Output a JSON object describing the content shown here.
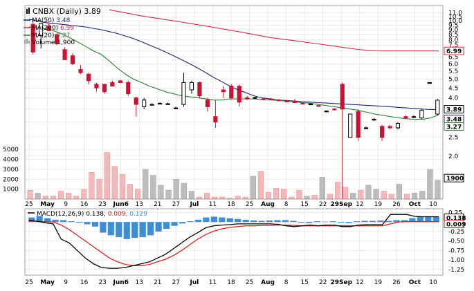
{
  "chart_data": [
    {
      "type": "candlestick",
      "title": "CNBX (Daily)",
      "last_price": "3.89",
      "colors": {
        "up": "#000000",
        "down": "#cc1133",
        "ma50": "#1a237e",
        "ma200": "#d22c4a",
        "ma20": "#2e7d32",
        "volume_up": "#bdbdbd",
        "volume_down": "#f2b8bc",
        "macd_hist": "#3d8ed9",
        "macd_line": "#000000",
        "signal_line": "#dd2222",
        "grid": "#dddddd"
      },
      "legend": [
        {
          "label": "CNBX (Daily)",
          "value": "3.89",
          "icon": "candlestick-icon"
        },
        {
          "label": "MA(50)",
          "value": "3.48",
          "color": "#1a237e"
        },
        {
          "label": "MA(200)",
          "value": "6.99",
          "color": "#d22c4a"
        },
        {
          "label": "MA(20)",
          "value": "3.27",
          "color": "#2e7d32"
        },
        {
          "label": "Volume",
          "value": "1,900",
          "icon": "volume-icon"
        }
      ],
      "price_axis": {
        "scale": "log",
        "ticks": [
          "11.0",
          "10.5",
          "10.0",
          "9.5",
          "9.0",
          "8.5",
          "8.0",
          "7.5",
          "7.0",
          "6.5",
          "6.0",
          "5.5",
          "5.0",
          "4.5",
          "4.0",
          "3.5",
          "3.0",
          "2.5",
          "2.0"
        ],
        "badges": [
          {
            "value": "6.99",
            "color": "#d22c4a"
          },
          {
            "value": "3.89",
            "color": "#000000"
          },
          {
            "value": "3.48",
            "color": "#1a237e"
          },
          {
            "value": "3.27",
            "color": "#2e7d32"
          },
          {
            "value": "1900",
            "color": "#000000"
          }
        ]
      },
      "volume_axis": {
        "ticks": [
          "5000",
          "4000",
          "3000",
          "2000",
          "1000"
        ],
        "max": 6400
      },
      "x_axis": {
        "labels": [
          "25",
          "May",
          "9",
          "16",
          "23",
          "Jun6",
          "13",
          "21",
          "27",
          "Jul",
          "11",
          "18",
          "25",
          "Aug",
          "8",
          "15",
          "22",
          "29Sep",
          "12",
          "19",
          "26",
          "Oct",
          "10"
        ],
        "month_labels": [
          "May",
          "Jun6",
          "Jul",
          "Aug",
          "29Sep",
          "Oct"
        ]
      },
      "candles": [
        {
          "o": 9.6,
          "h": 10.1,
          "l": 6.7,
          "c": 6.9
        },
        {
          "o": 8.4,
          "h": 9.8,
          "l": 7.2,
          "c": 9.7
        },
        {
          "o": 9.4,
          "h": 9.8,
          "l": 8.9,
          "c": 8.9
        },
        {
          "o": 8.5,
          "h": 8.6,
          "l": 7.5,
          "c": 7.6
        },
        {
          "o": 7.1,
          "h": 7.3,
          "l": 6.3,
          "c": 6.3
        },
        {
          "o": 6.6,
          "h": 6.8,
          "l": 5.9,
          "c": 6.0
        },
        {
          "o": 5.6,
          "h": 5.9,
          "l": 5.3,
          "c": 5.4
        },
        {
          "o": 5.3,
          "h": 5.4,
          "l": 4.7,
          "c": 4.9
        },
        {
          "o": 4.7,
          "h": 4.8,
          "l": 4.3,
          "c": 4.5
        },
        {
          "o": 4.7,
          "h": 4.7,
          "l": 4.2,
          "c": 4.3
        },
        {
          "o": 4.8,
          "h": 4.9,
          "l": 4.6,
          "c": 4.6
        },
        {
          "o": 4.9,
          "h": 4.95,
          "l": 4.75,
          "c": 4.8
        },
        {
          "o": 4.8,
          "h": 4.9,
          "l": 4.1,
          "c": 4.2
        },
        {
          "o": 4.0,
          "h": 4.05,
          "l": 3.2,
          "c": 3.7
        },
        {
          "o": 3.6,
          "h": 4.0,
          "l": 3.5,
          "c": 3.9
        },
        {
          "o": 3.7,
          "h": 3.75,
          "l": 3.68,
          "c": 3.7
        },
        {
          "o": 3.75,
          "h": 3.8,
          "l": 3.72,
          "c": 3.75
        },
        {
          "o": 3.72,
          "h": 3.78,
          "l": 3.7,
          "c": 3.73
        },
        {
          "o": 3.55,
          "h": 3.6,
          "l": 3.5,
          "c": 3.55
        },
        {
          "o": 3.7,
          "h": 5.4,
          "l": 3.6,
          "c": 4.8
        },
        {
          "o": 4.4,
          "h": 4.9,
          "l": 4.2,
          "c": 4.8
        },
        {
          "o": 4.8,
          "h": 4.85,
          "l": 4.0,
          "c": 4.1
        },
        {
          "o": 3.9,
          "h": 4.0,
          "l": 3.4,
          "c": 3.6
        },
        {
          "o": 3.2,
          "h": 3.9,
          "l": 2.8,
          "c": 3.0
        },
        {
          "o": 4.4,
          "h": 4.6,
          "l": 4.0,
          "c": 4.3
        },
        {
          "o": 4.6,
          "h": 4.7,
          "l": 3.9,
          "c": 4.0
        },
        {
          "o": 4.6,
          "h": 4.7,
          "l": 3.6,
          "c": 3.8
        },
        {
          "o": 4.0,
          "h": 4.1,
          "l": 3.9,
          "c": 3.95
        },
        {
          "o": 4.0,
          "h": 4.05,
          "l": 3.95,
          "c": 4.02
        },
        {
          "o": 3.95,
          "h": 4.0,
          "l": 3.9,
          "c": 3.92
        },
        {
          "o": 3.95,
          "h": 4.0,
          "l": 3.9,
          "c": 3.93
        },
        {
          "o": 3.9,
          "h": 3.95,
          "l": 3.85,
          "c": 3.88
        },
        {
          "o": 3.85,
          "h": 3.9,
          "l": 3.8,
          "c": 3.82
        },
        {
          "o": 3.85,
          "h": 3.95,
          "l": 3.75,
          "c": 3.78
        },
        {
          "o": 3.75,
          "h": 3.8,
          "l": 3.7,
          "c": 3.73
        },
        {
          "o": 3.72,
          "h": 3.75,
          "l": 3.7,
          "c": 3.72
        },
        {
          "o": 3.65,
          "h": 3.68,
          "l": 3.62,
          "c": 3.64
        },
        {
          "o": 3.4,
          "h": 3.45,
          "l": 3.38,
          "c": 3.42
        },
        {
          "o": 3.5,
          "h": 3.55,
          "l": 3.45,
          "c": 3.48
        },
        {
          "o": 4.7,
          "h": 4.8,
          "l": 1.2,
          "c": 3.5
        },
        {
          "o": 2.5,
          "h": 3.3,
          "l": 2.5,
          "c": 3.3
        },
        {
          "o": 3.4,
          "h": 3.5,
          "l": 2.4,
          "c": 2.5
        },
        {
          "o": 2.8,
          "h": 2.85,
          "l": 2.75,
          "c": 2.8
        },
        {
          "o": 3.1,
          "h": 3.15,
          "l": 3.05,
          "c": 3.1
        },
        {
          "o": 2.85,
          "h": 2.9,
          "l": 2.4,
          "c": 2.5
        },
        {
          "o": 2.85,
          "h": 2.9,
          "l": 2.75,
          "c": 2.8
        },
        {
          "o": 2.8,
          "h": 3.0,
          "l": 2.75,
          "c": 2.95
        },
        {
          "o": 3.2,
          "h": 3.25,
          "l": 3.1,
          "c": 3.15
        },
        {
          "o": 3.2,
          "h": 3.25,
          "l": 3.15,
          "c": 3.2
        },
        {
          "o": 3.15,
          "h": 3.5,
          "l": 3.1,
          "c": 3.45
        },
        {
          "o": 4.8,
          "h": 4.82,
          "l": 4.78,
          "c": 4.8
        },
        {
          "o": 3.3,
          "h": 3.95,
          "l": 3.25,
          "c": 3.89
        }
      ],
      "ma20": [
        9.3,
        9.2,
        9.1,
        8.9,
        8.6,
        8.2,
        7.8,
        7.4,
        7.0,
        6.7,
        6.2,
        5.7,
        5.3,
        5.0,
        4.8,
        4.6,
        4.45,
        4.3,
        4.2,
        4.1,
        4.05,
        4.0,
        3.95,
        3.9,
        3.9,
        3.95,
        3.95,
        3.95,
        3.95,
        3.92,
        3.9,
        3.88,
        3.85,
        3.82,
        3.78,
        3.75,
        3.7,
        3.65,
        3.6,
        3.55,
        3.5,
        3.45,
        3.38,
        3.3,
        3.25,
        3.2,
        3.15,
        3.12,
        3.1,
        3.1,
        3.15,
        3.27
      ],
      "ma50": [
        10.2,
        10.0,
        9.8,
        9.7,
        9.6,
        9.5,
        9.4,
        9.3,
        9.15,
        9.0,
        8.8,
        8.6,
        8.35,
        8.1,
        7.8,
        7.5,
        7.2,
        6.9,
        6.6,
        6.3,
        6.0,
        5.7,
        5.4,
        5.1,
        4.85,
        4.6,
        4.4,
        4.25,
        4.1,
        4.0,
        3.95,
        3.9,
        3.88,
        3.85,
        3.82,
        3.8,
        3.78,
        3.76,
        3.74,
        3.72,
        3.7,
        3.68,
        3.66,
        3.64,
        3.62,
        3.6,
        3.57,
        3.55,
        3.52,
        3.5,
        3.48,
        3.48
      ],
      "ma200": [
        null,
        null,
        null,
        null,
        null,
        null,
        null,
        null,
        null,
        null,
        11.4,
        11.2,
        11.0,
        10.8,
        10.6,
        10.45,
        10.3,
        10.15,
        10.0,
        9.85,
        9.7,
        9.55,
        9.4,
        9.25,
        9.1,
        8.95,
        8.8,
        8.65,
        8.5,
        8.35,
        8.2,
        8.1,
        8.0,
        7.9,
        7.8,
        7.7,
        7.6,
        7.5,
        7.4,
        7.3,
        7.2,
        7.12,
        7.05,
        7.0,
        6.99,
        6.99,
        6.99,
        6.99,
        6.99,
        6.99,
        6.99,
        6.99
      ],
      "volume": [
        900,
        600,
        300,
        300,
        800,
        600,
        300,
        1000,
        2700,
        2000,
        4700,
        3300,
        2500,
        1500,
        1000,
        3000,
        2400,
        1400,
        900,
        2000,
        1600,
        800,
        200,
        600,
        200,
        200,
        100,
        300,
        200,
        2300,
        2800,
        700,
        1100,
        1000,
        200,
        900,
        300,
        400,
        2200,
        500,
        1700,
        1200,
        600,
        900,
        1400,
        1000,
        800,
        500,
        1500,
        500,
        600,
        800,
        3000,
        1900
      ],
      "macd": {
        "label": "MACD(12,26,9)",
        "values": {
          "macd": "0.138",
          "signal": "0.009",
          "hist": "0.129"
        },
        "ticks": [
          "0.25",
          "0.00",
          "-0.25",
          "-0.50",
          "-0.75",
          "-1.00",
          "-1.25"
        ],
        "badges": [
          {
            "value": "0.138",
            "color": "#000000"
          },
          {
            "value": "0.009",
            "color": "#dd2222"
          }
        ],
        "macd_line": [
          0.05,
          0.02,
          -0.02,
          -0.05,
          -0.45,
          -0.55,
          -0.75,
          -0.95,
          -1.1,
          -1.2,
          -1.22,
          -1.22,
          -1.2,
          -1.15,
          -1.1,
          -1.05,
          -0.95,
          -0.85,
          -0.7,
          -0.55,
          -0.4,
          -0.28,
          -0.15,
          -0.1,
          -0.08,
          -0.07,
          -0.05,
          -0.05,
          -0.05,
          -0.05,
          -0.05,
          -0.06,
          -0.1,
          -0.12,
          -0.1,
          -0.08,
          -0.1,
          -0.08,
          -0.08,
          -0.12,
          -0.12,
          -0.08,
          -0.07,
          -0.07,
          -0.07,
          0.2,
          0.2,
          0.2,
          0.15,
          0.14,
          0.14,
          0.138
        ],
        "signal_line": [
          0.02,
          0.02,
          0.01,
          0.0,
          -0.08,
          -0.2,
          -0.35,
          -0.5,
          -0.65,
          -0.8,
          -0.95,
          -1.05,
          -1.12,
          -1.15,
          -1.15,
          -1.12,
          -1.05,
          -0.98,
          -0.88,
          -0.75,
          -0.6,
          -0.45,
          -0.33,
          -0.24,
          -0.18,
          -0.14,
          -0.12,
          -0.1,
          -0.1,
          -0.09,
          -0.09,
          -0.08,
          -0.08,
          -0.09,
          -0.1,
          -0.1,
          -0.1,
          -0.1,
          -0.1,
          -0.1,
          -0.1,
          -0.1,
          -0.1,
          -0.1,
          -0.1,
          -0.05,
          0.0,
          0.01,
          0.01,
          0.009,
          0.009,
          0.009
        ],
        "histogram": [
          0.12,
          0.16,
          0.1,
          0.06,
          0.05,
          0.02,
          -0.02,
          -0.06,
          -0.12,
          -0.28,
          -0.35,
          -0.4,
          -0.45,
          -0.42,
          -0.4,
          -0.35,
          -0.25,
          -0.18,
          -0.1,
          -0.04,
          0.02,
          0.06,
          0.12,
          0.14,
          0.12,
          0.1,
          0.08,
          0.06,
          0.04,
          0.03,
          0.04,
          0.05,
          0.05,
          0.03,
          -0.02,
          -0.03,
          0.02,
          0.01,
          0.02,
          -0.02,
          -0.03,
          0.02,
          0.03,
          0.03,
          0.04,
          0.03,
          0.05,
          0.05,
          0.1,
          0.14,
          0.13,
          0.129
        ]
      }
    }
  ]
}
